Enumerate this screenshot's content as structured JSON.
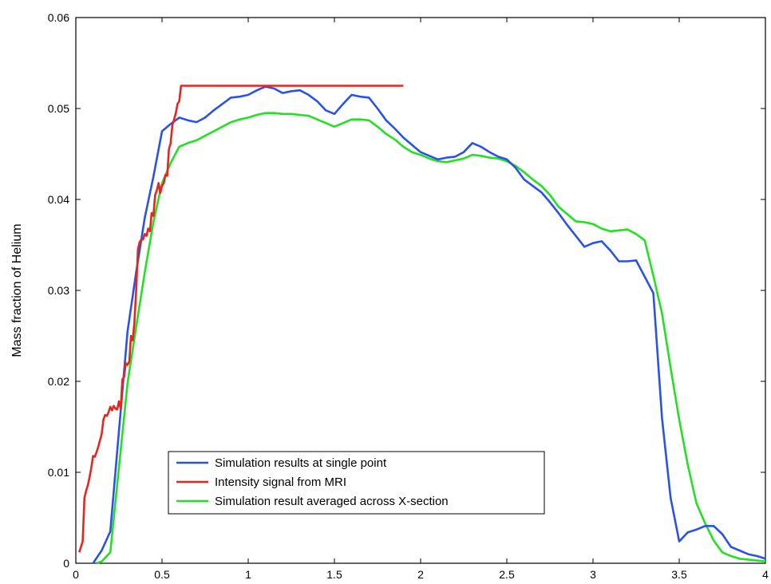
{
  "chart_data": {
    "type": "line",
    "title": "",
    "xlabel": "",
    "ylabel": "Mass fraction of Helium",
    "xlim": [
      0,
      4
    ],
    "ylim": [
      0,
      0.06
    ],
    "xticks": [
      0,
      0.5,
      1,
      1.5,
      2,
      2.5,
      3,
      3.5,
      4
    ],
    "xtick_labels": [
      "0",
      "0.5",
      "1",
      "1.5",
      "2",
      "2.5",
      "3",
      "3.5",
      "4"
    ],
    "yticks": [
      0,
      0.01,
      0.02,
      0.03,
      0.04,
      0.05,
      0.06
    ],
    "ytick_labels": [
      "0",
      "0.01",
      "0.02",
      "0.03",
      "0.04",
      "0.05",
      "0.06"
    ],
    "grid": false,
    "legend_position": "lower-left",
    "series": [
      {
        "name": "Simulation results at single point",
        "color": "#2a52e8",
        "x": [
          0.1,
          0.15,
          0.2,
          0.25,
          0.3,
          0.35,
          0.4,
          0.45,
          0.5,
          0.55,
          0.6,
          0.65,
          0.7,
          0.75,
          0.8,
          0.85,
          0.9,
          0.95,
          1.0,
          1.05,
          1.1,
          1.15,
          1.2,
          1.25,
          1.3,
          1.35,
          1.4,
          1.45,
          1.5,
          1.55,
          1.6,
          1.65,
          1.7,
          1.75,
          1.8,
          1.85,
          1.9,
          1.95,
          2.0,
          2.05,
          2.1,
          2.15,
          2.2,
          2.25,
          2.3,
          2.35,
          2.4,
          2.45,
          2.5,
          2.55,
          2.6,
          2.65,
          2.7,
          2.75,
          2.8,
          2.85,
          2.9,
          2.95,
          3.0,
          3.05,
          3.1,
          3.15,
          3.2,
          3.25,
          3.3,
          3.35,
          3.4,
          3.45,
          3.5,
          3.55,
          3.6,
          3.65,
          3.7,
          3.75,
          3.8,
          3.85,
          3.9,
          3.95,
          4.0
        ],
        "y": [
          0.0,
          0.0014,
          0.0035,
          0.0145,
          0.0255,
          0.032,
          0.038,
          0.0425,
          0.0475,
          0.0483,
          0.049,
          0.0487,
          0.0485,
          0.049,
          0.0498,
          0.0505,
          0.0512,
          0.0513,
          0.0515,
          0.052,
          0.0524,
          0.0522,
          0.0517,
          0.0519,
          0.052,
          0.0515,
          0.0508,
          0.0498,
          0.0494,
          0.0505,
          0.0515,
          0.0513,
          0.0512,
          0.05,
          0.0487,
          0.0478,
          0.0468,
          0.046,
          0.0452,
          0.0448,
          0.0444,
          0.0446,
          0.0447,
          0.0452,
          0.0462,
          0.0458,
          0.0452,
          0.0447,
          0.0444,
          0.0435,
          0.0422,
          0.0415,
          0.0408,
          0.0397,
          0.0385,
          0.0372,
          0.036,
          0.0348,
          0.0352,
          0.0354,
          0.0344,
          0.0332,
          0.0332,
          0.0333,
          0.0315,
          0.0297,
          0.016,
          0.0072,
          0.0024,
          0.0034,
          0.0037,
          0.0041,
          0.0041,
          0.0032,
          0.0018,
          0.0014,
          0.001,
          0.0008,
          0.0005
        ]
      },
      {
        "name": "Intensity signal from MRI",
        "color": "#e8241e",
        "x": [
          0.02,
          0.04,
          0.05,
          0.06,
          0.07,
          0.08,
          0.09,
          0.1,
          0.11,
          0.12,
          0.13,
          0.14,
          0.15,
          0.16,
          0.17,
          0.18,
          0.19,
          0.2,
          0.21,
          0.22,
          0.23,
          0.24,
          0.25,
          0.26,
          0.27,
          0.28,
          0.29,
          0.3,
          0.31,
          0.32,
          0.33,
          0.34,
          0.35,
          0.36,
          0.37,
          0.38,
          0.39,
          0.4,
          0.41,
          0.42,
          0.43,
          0.44,
          0.45,
          0.46,
          0.47,
          0.48,
          0.49,
          0.5,
          0.51,
          0.52,
          0.53,
          0.54,
          0.55,
          0.56,
          0.57,
          0.58,
          0.59,
          0.6,
          0.61,
          0.62,
          0.63,
          0.64,
          0.65,
          0.66,
          0.67,
          0.68,
          0.69,
          0.7,
          0.71,
          0.72,
          1.9
        ],
        "y": [
          0.0012,
          0.0024,
          0.0072,
          0.008,
          0.0086,
          0.0095,
          0.0105,
          0.0118,
          0.0117,
          0.0122,
          0.0128,
          0.0135,
          0.0142,
          0.0158,
          0.0163,
          0.0162,
          0.0166,
          0.0172,
          0.0168,
          0.0173,
          0.017,
          0.0169,
          0.0178,
          0.017,
          0.0202,
          0.0205,
          0.022,
          0.0218,
          0.0222,
          0.025,
          0.0245,
          0.0265,
          0.03,
          0.0345,
          0.0353,
          0.0356,
          0.0356,
          0.0362,
          0.036,
          0.0368,
          0.0365,
          0.0385,
          0.0382,
          0.0405,
          0.041,
          0.0418,
          0.0407,
          0.0415,
          0.0418,
          0.0427,
          0.0426,
          0.0455,
          0.0462,
          0.0482,
          0.0488,
          0.0495,
          0.0505,
          0.0508,
          0.0525,
          0.0525,
          0.0525,
          0.0525,
          0.0525,
          0.0525,
          0.0525,
          0.0525,
          0.0525,
          0.0525,
          0.0525,
          0.0525,
          0.0525
        ]
      },
      {
        "name": "Simulation result averaged across X-section",
        "color": "#24e024",
        "x": [
          0.12,
          0.15,
          0.2,
          0.25,
          0.3,
          0.35,
          0.4,
          0.45,
          0.5,
          0.55,
          0.6,
          0.65,
          0.7,
          0.75,
          0.8,
          0.85,
          0.9,
          0.95,
          1.0,
          1.05,
          1.1,
          1.15,
          1.2,
          1.25,
          1.3,
          1.35,
          1.4,
          1.45,
          1.5,
          1.55,
          1.6,
          1.65,
          1.7,
          1.75,
          1.8,
          1.85,
          1.9,
          1.95,
          2.0,
          2.05,
          2.1,
          2.15,
          2.2,
          2.25,
          2.3,
          2.35,
          2.4,
          2.45,
          2.5,
          2.55,
          2.6,
          2.65,
          2.7,
          2.75,
          2.8,
          2.85,
          2.9,
          2.95,
          3.0,
          3.05,
          3.1,
          3.15,
          3.2,
          3.25,
          3.3,
          3.35,
          3.4,
          3.45,
          3.5,
          3.55,
          3.6,
          3.65,
          3.7,
          3.75,
          3.8,
          3.85,
          3.9,
          3.95,
          4.0
        ],
        "y": [
          0.0,
          0.0002,
          0.0012,
          0.0105,
          0.0198,
          0.026,
          0.032,
          0.0375,
          0.0418,
          0.044,
          0.0458,
          0.0462,
          0.0465,
          0.047,
          0.0475,
          0.048,
          0.0485,
          0.0488,
          0.049,
          0.0493,
          0.0495,
          0.0495,
          0.0494,
          0.0494,
          0.0493,
          0.0492,
          0.0488,
          0.0484,
          0.048,
          0.0484,
          0.0488,
          0.0488,
          0.0487,
          0.048,
          0.0472,
          0.0466,
          0.0458,
          0.0452,
          0.0449,
          0.0445,
          0.0442,
          0.0441,
          0.0443,
          0.0445,
          0.0449,
          0.0448,
          0.0446,
          0.0445,
          0.0442,
          0.0437,
          0.043,
          0.0422,
          0.0415,
          0.0405,
          0.0392,
          0.0384,
          0.0376,
          0.0375,
          0.0373,
          0.0368,
          0.0365,
          0.0366,
          0.0367,
          0.0362,
          0.0355,
          0.0316,
          0.0275,
          0.0215,
          0.0158,
          0.0108,
          0.0066,
          0.0044,
          0.0025,
          0.0012,
          0.0008,
          0.0005,
          0.0004,
          0.0003,
          0.0002
        ]
      }
    ]
  }
}
